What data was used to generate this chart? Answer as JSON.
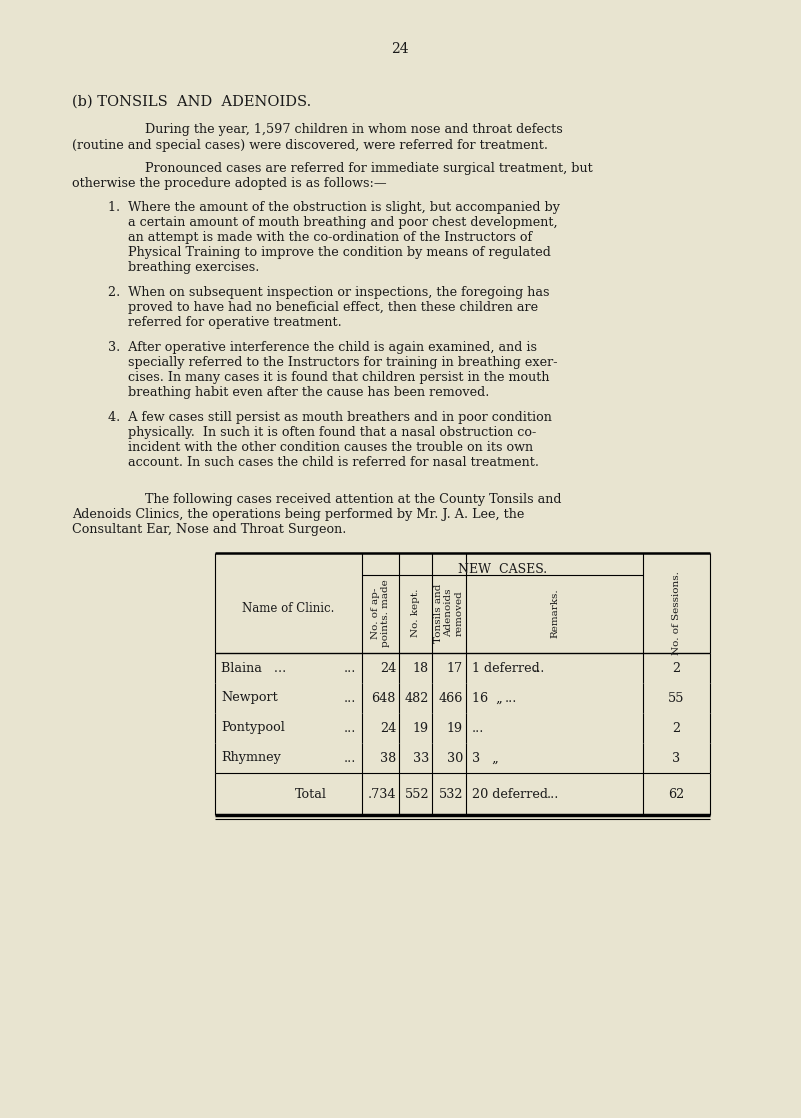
{
  "bg_color": "#e8e4d0",
  "text_color": "#1a1a1a",
  "page_number": "24",
  "section_title": "(b) TONSILS  AND  ADENOIDS.",
  "para1_line1": "During the year, 1,597 children in whom nose and throat defects",
  "para1_line2": "(routine and special cases) were discovered, were referred for treatment.",
  "para2_line1": "Pronounced cases are referred for immediate surgical treatment, but",
  "para2_line2": "otherwise the procedure adopted is as follows:—",
  "item1_lines": [
    "1.  Where the amount of the obstruction is slight, but accompanied by",
    "     a certain amount of mouth breathing and poor chest development,",
    "     an attempt is made with the co-ordination of the Instructors of",
    "     Physical Training to improve the condition by means of regulated",
    "     breathing exercises."
  ],
  "item2_lines": [
    "2.  When on subsequent inspection or inspections, the foregoing has",
    "     proved to have had no beneficial effect, then these children are",
    "     referred for operative treatment."
  ],
  "item3_lines": [
    "3.  After operative interference the child is again examined, and is",
    "     specially referred to the Instructors for training in breathing exer-",
    "     cises. In many cases it is found that children persist in the mouth",
    "     breathing habit even after the cause has been removed."
  ],
  "item4_lines": [
    "4.  A few cases still persist as mouth breathers and in poor condition",
    "     physically.  In such it is often found that a nasal obstruction co-",
    "     incident with the other condition causes the trouble on its own",
    "     account. In such cases the child is referred for nasal treatment."
  ],
  "para3_line1": "The following cases received attention at the County Tonsils and",
  "para3_line2": "Adenoids Clinics, the operations being performed by Mr. J. A. Lee, the",
  "para3_line3": "Consultant Ear, Nose and Throat Surgeon.",
  "table_rows": [
    {
      "name": "Blaina   ...",
      "dots": "...",
      "ap": "24",
      "kept": "18",
      "removed": "17",
      "rem1": "1 deferred",
      "rem2": "...",
      "sessions": "2"
    },
    {
      "name": "Newport",
      "dots": "...",
      "ap": "648",
      "kept": "482",
      "removed": "466",
      "rem1": "16  „",
      "rem2": "...",
      "sessions": "55"
    },
    {
      "name": "Pontypool",
      "dots": "...",
      "ap": "24",
      "kept": "19",
      "removed": "19",
      "rem1": "",
      "rem2": "...",
      "sessions": "2"
    },
    {
      "name": "Rhymney",
      "dots": "...",
      "ap": "38",
      "kept": "33",
      "removed": "30",
      "rem1": "3   „",
      "rem2": "",
      "sessions": "3"
    }
  ],
  "total": {
    "name": "Total",
    "ap": ".734",
    "kept": "552",
    "removed": "532",
    "rem1": "20 deferred",
    "rem2": "...",
    "sessions": "62"
  },
  "header_ap": "No. of ap-\npoints. made",
  "header_kept": "No. kept.",
  "header_removed": "Tonsils and\nAdenoids\nremoved",
  "header_remarks": "Remarks.",
  "header_sessions": "No. of Sessions.",
  "new_cases": "NEW  CASES.",
  "name_header": "Name of Clinic."
}
